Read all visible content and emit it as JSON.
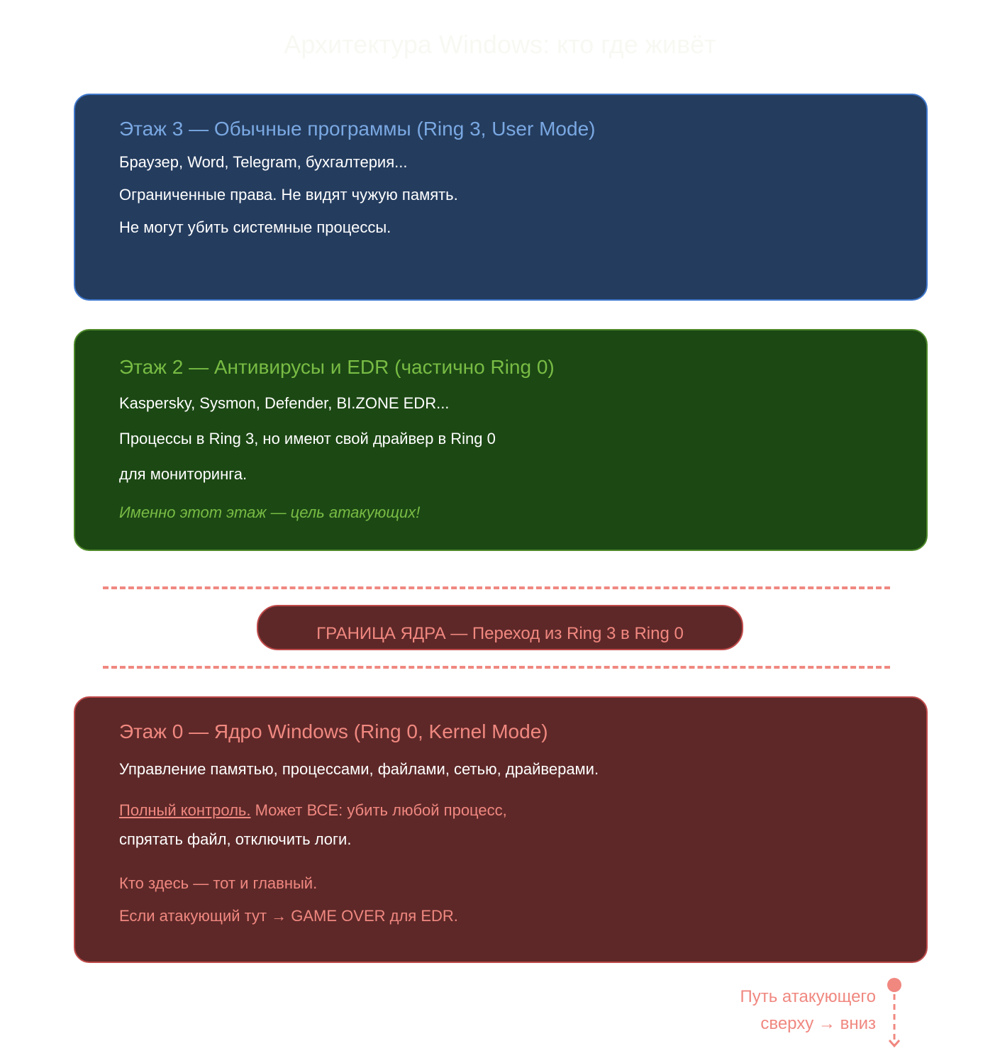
{
  "title": "Архитектура Windows: кто где живёт",
  "floor3": {
    "title": "Этаж 3 — Обычные программы (Ring 3, User Mode)",
    "lines": [
      "Браузер, Word, Telegram, бухгалтерия...",
      "Ограниченные права. Не видят чужую память.",
      "Не могут убить системные процессы."
    ]
  },
  "floor2": {
    "title": "Этаж 2 — Антивирусы и EDR (частично Ring 0)",
    "lines": [
      "Kaspersky, Sysmon, Defender, BI.ZONE EDR...",
      "Процессы в Ring 3, но имеют свой драйвер в Ring 0",
      "для мониторинга."
    ],
    "note": "Именно этот этаж — цель атакующих!"
  },
  "boundary": {
    "label": "ГРАНИЦА ЯДРА — Переход из Ring 3 в Ring 0"
  },
  "floor0": {
    "title": "Этаж 0 — Ядро Windows (Ring 0, Kernel Mode)",
    "line1": "Управление памятью, процессами, файлами, сетью, драйверами.",
    "link": "Полный контроль.",
    "line2a": " Может ВСЕ: убить любой процесс,",
    "line3": "спрятать файл, отключить логи.",
    "line4": "Кто здесь — тот и главный.",
    "line5": "Если атакующий тут → GAME OVER для EDR."
  },
  "attack_path": {
    "line1": "Путь атакующего",
    "line2": "сверху → вниз"
  },
  "colors": {
    "user": "#243c5e",
    "edr": "#1c4814",
    "kernel": "#5e2828",
    "accent": "#f08880"
  }
}
